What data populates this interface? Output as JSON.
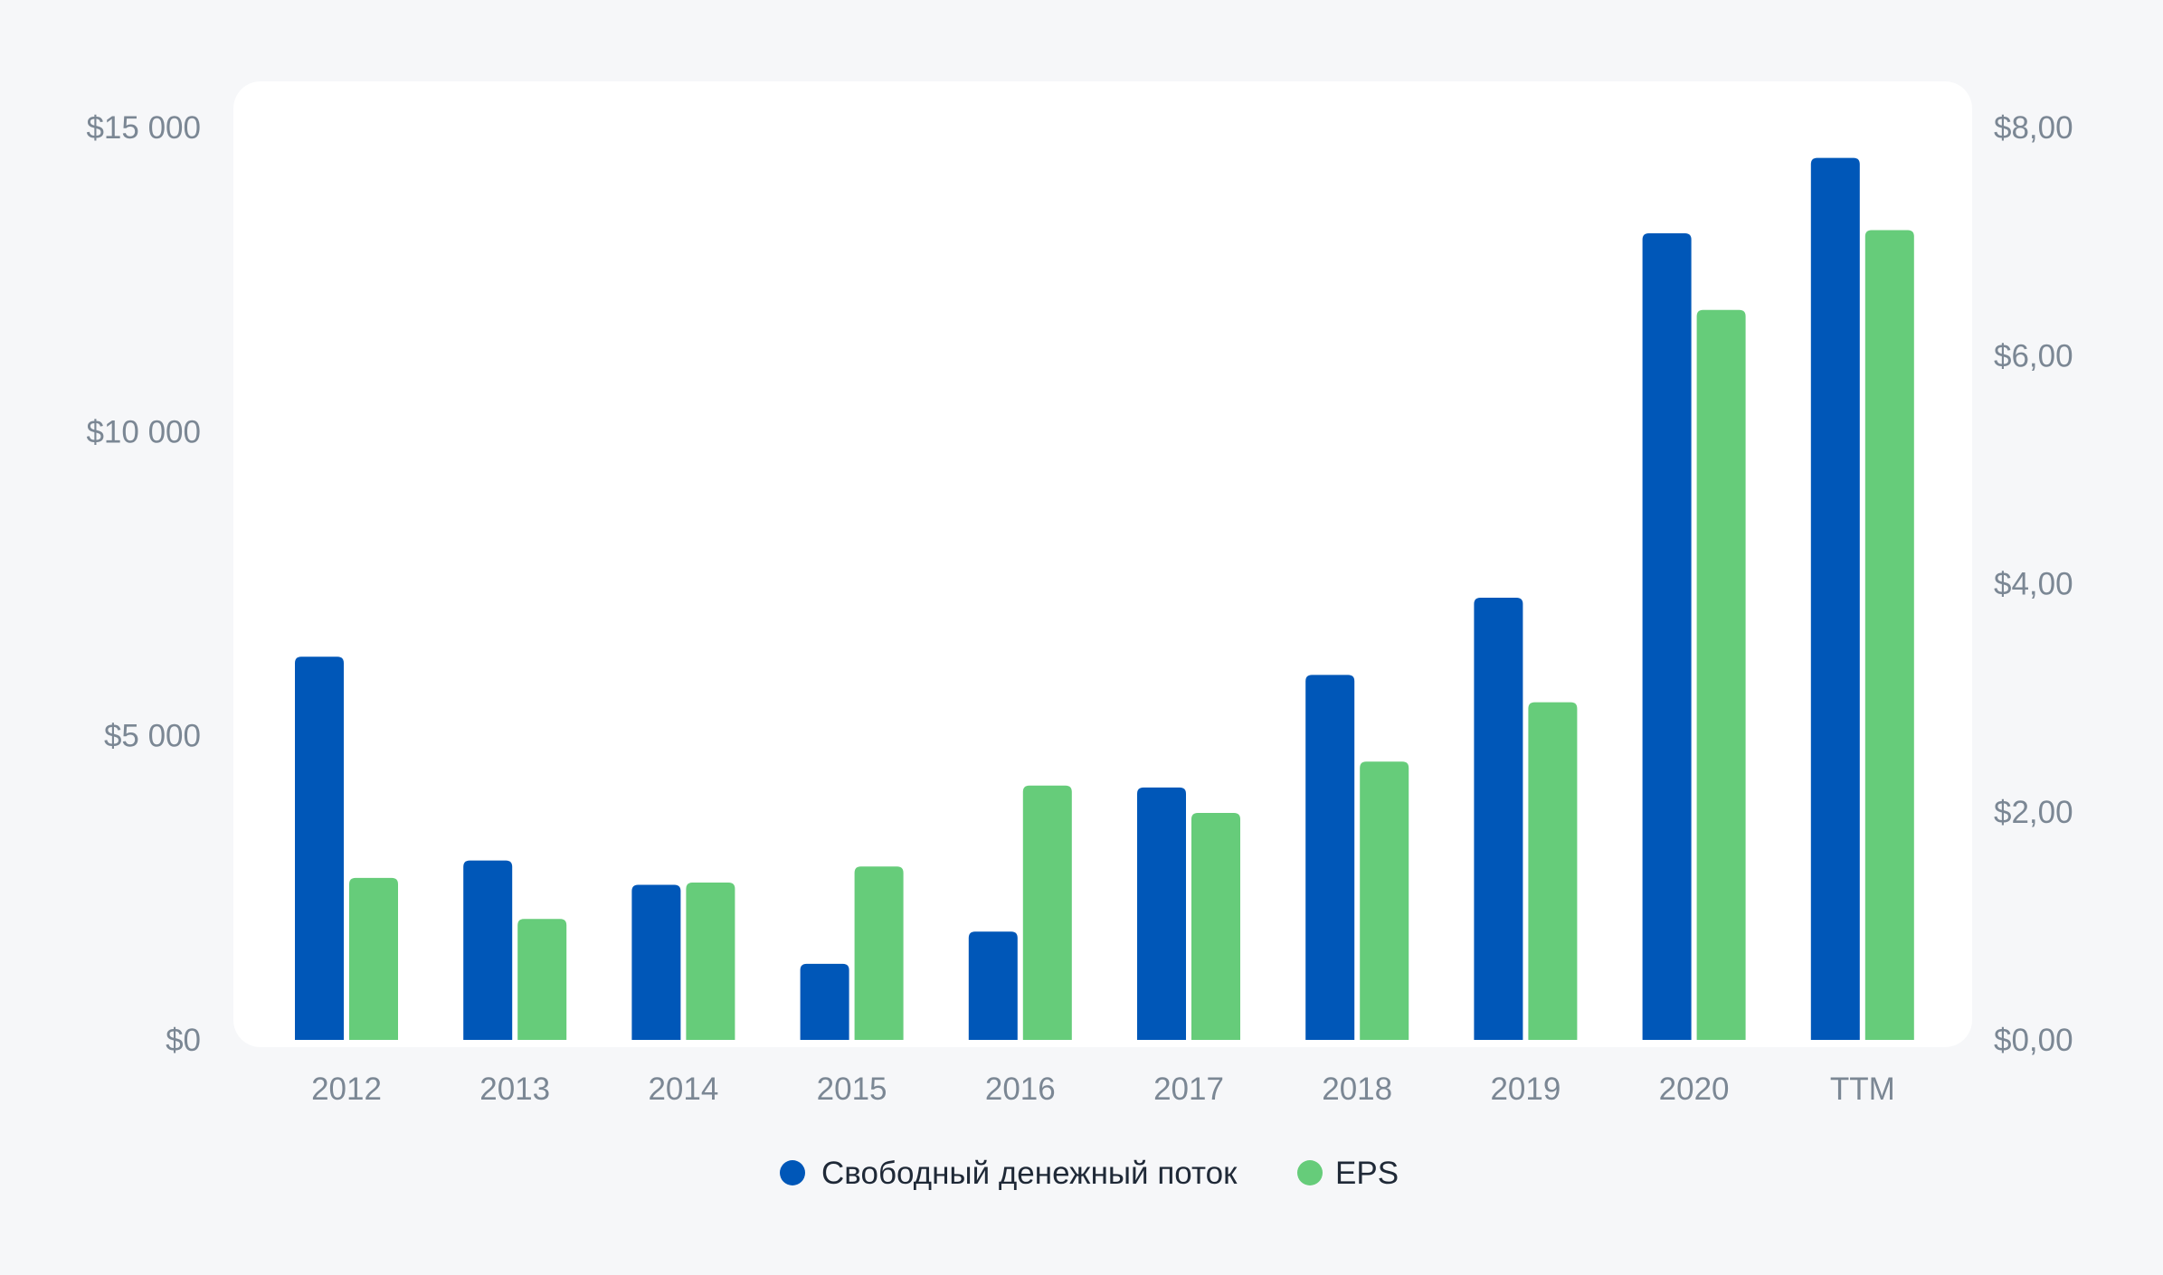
{
  "chart_data": {
    "type": "bar",
    "categories": [
      "2012",
      "2013",
      "2014",
      "2015",
      "2016",
      "2017",
      "2018",
      "2019",
      "2020",
      "TTM"
    ],
    "series": [
      {
        "name": "Свободный денежный поток",
        "axis": "left",
        "color": "#0057b8",
        "values": [
          6300,
          2950,
          2550,
          1250,
          1780,
          4150,
          6000,
          7270,
          13260,
          14500
        ]
      },
      {
        "name": "EPS",
        "axis": "right",
        "color": "#66cc7a",
        "values": [
          1.42,
          1.06,
          1.38,
          1.52,
          2.23,
          1.99,
          2.44,
          2.96,
          6.4,
          7.1
        ]
      }
    ],
    "left_axis": {
      "ylim": [
        0,
        15000
      ],
      "ticks": [
        0,
        5000,
        10000,
        15000
      ],
      "tick_labels": [
        "$0",
        "$5 000",
        "$10 000",
        "$15 000"
      ]
    },
    "right_axis": {
      "ylim": [
        0,
        8
      ],
      "ticks": [
        0,
        2,
        4,
        6,
        8
      ],
      "tick_labels": [
        "$0,00",
        "$2,00",
        "$4,00",
        "$6,00",
        "$8,00"
      ]
    },
    "title": "",
    "xlabel": "",
    "ylabel": "",
    "legend": "bottom-center",
    "grid": false
  }
}
